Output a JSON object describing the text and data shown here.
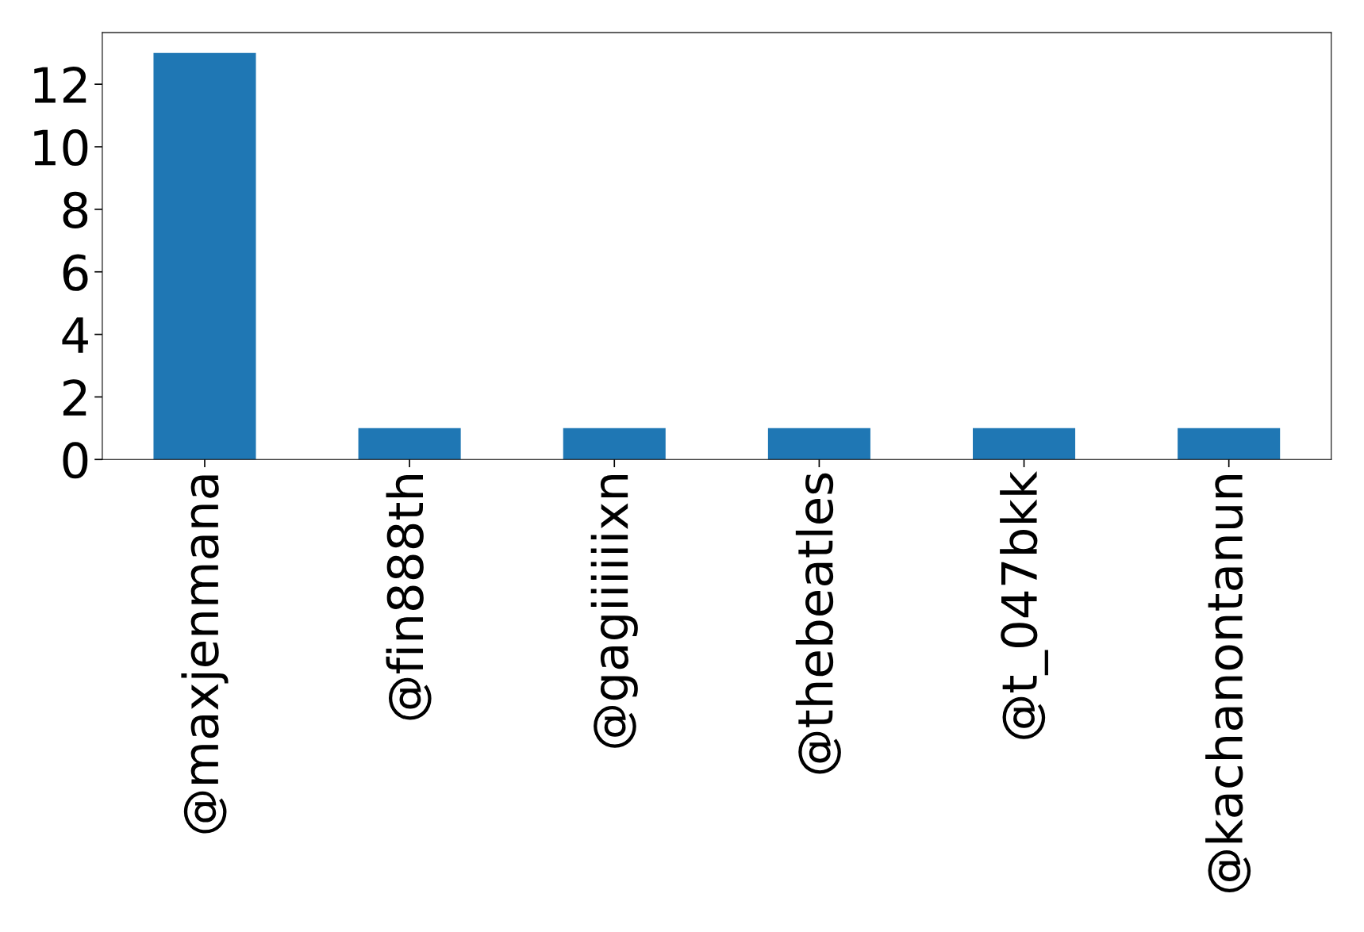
{
  "chart_data": {
    "type": "bar",
    "categories": [
      "@maxjenmana",
      "@fin888th",
      "@gagiiiiiixn",
      "@thebeatles",
      "@t_047bkk",
      "@kachanontanun"
    ],
    "values": [
      13,
      1,
      1,
      1,
      1,
      1
    ],
    "color": "#1f77b4",
    "ylim": [
      0,
      13.65
    ],
    "yticks": [
      0,
      2,
      4,
      6,
      8,
      10,
      12
    ],
    "grid": false
  }
}
